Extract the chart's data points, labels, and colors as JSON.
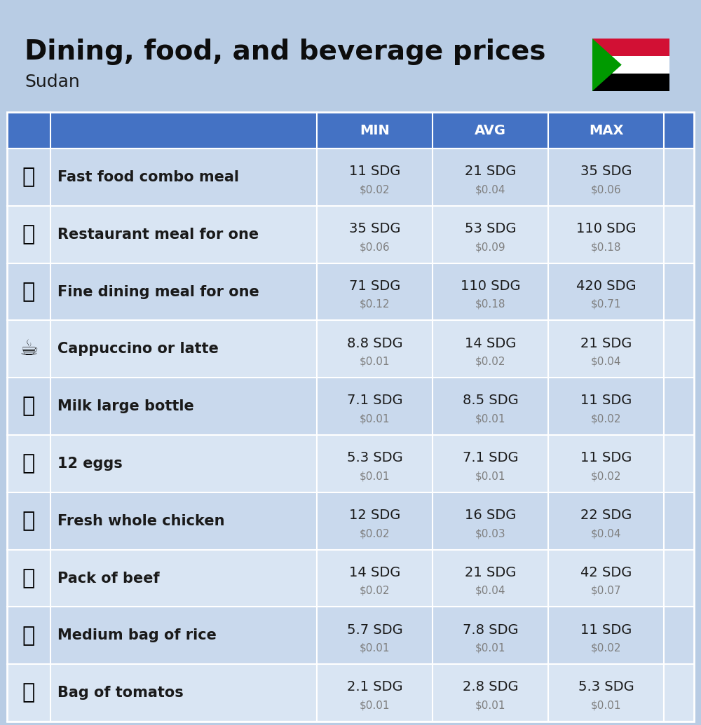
{
  "title": "Dining, food, and beverage prices",
  "subtitle": "Sudan",
  "bg_color": "#b8cce4",
  "header_bg": "#4472c4",
  "header_text_color": "#ffffff",
  "row_bg_odd": "#c9d9ed",
  "row_bg_even": "#d9e5f3",
  "col_headers": [
    "MIN",
    "AVG",
    "MAX"
  ],
  "items": [
    {
      "name": "Fast food combo meal",
      "emoji": "🍔",
      "min_sdg": "11 SDG",
      "min_usd": "$0.02",
      "avg_sdg": "21 SDG",
      "avg_usd": "$0.04",
      "max_sdg": "35 SDG",
      "max_usd": "$0.06"
    },
    {
      "name": "Restaurant meal for one",
      "emoji": "🍳",
      "min_sdg": "35 SDG",
      "min_usd": "$0.06",
      "avg_sdg": "53 SDG",
      "avg_usd": "$0.09",
      "max_sdg": "110 SDG",
      "max_usd": "$0.18"
    },
    {
      "name": "Fine dining meal for one",
      "emoji": "🍽️",
      "min_sdg": "71 SDG",
      "min_usd": "$0.12",
      "avg_sdg": "110 SDG",
      "avg_usd": "$0.18",
      "max_sdg": "420 SDG",
      "max_usd": "$0.71"
    },
    {
      "name": "Cappuccino or latte",
      "emoji": "☕",
      "min_sdg": "8.8 SDG",
      "min_usd": "$0.01",
      "avg_sdg": "14 SDG",
      "avg_usd": "$0.02",
      "max_sdg": "21 SDG",
      "max_usd": "$0.04"
    },
    {
      "name": "Milk large bottle",
      "emoji": "🥛",
      "min_sdg": "7.1 SDG",
      "min_usd": "$0.01",
      "avg_sdg": "8.5 SDG",
      "avg_usd": "$0.01",
      "max_sdg": "11 SDG",
      "max_usd": "$0.02"
    },
    {
      "name": "12 eggs",
      "emoji": "🥚",
      "min_sdg": "5.3 SDG",
      "min_usd": "$0.01",
      "avg_sdg": "7.1 SDG",
      "avg_usd": "$0.01",
      "max_sdg": "11 SDG",
      "max_usd": "$0.02"
    },
    {
      "name": "Fresh whole chicken",
      "emoji": "🍗",
      "min_sdg": "12 SDG",
      "min_usd": "$0.02",
      "avg_sdg": "16 SDG",
      "avg_usd": "$0.03",
      "max_sdg": "22 SDG",
      "max_usd": "$0.04"
    },
    {
      "name": "Pack of beef",
      "emoji": "🥩",
      "min_sdg": "14 SDG",
      "min_usd": "$0.02",
      "avg_sdg": "21 SDG",
      "avg_usd": "$0.04",
      "max_sdg": "42 SDG",
      "max_usd": "$0.07"
    },
    {
      "name": "Medium bag of rice",
      "emoji": "🍚",
      "min_sdg": "5.7 SDG",
      "min_usd": "$0.01",
      "avg_sdg": "7.8 SDG",
      "avg_usd": "$0.01",
      "max_sdg": "11 SDG",
      "max_usd": "$0.02"
    },
    {
      "name": "Bag of tomatos",
      "emoji": "🍅",
      "min_sdg": "2.1 SDG",
      "min_usd": "$0.01",
      "avg_sdg": "2.8 SDG",
      "avg_usd": "$0.01",
      "max_sdg": "5.3 SDG",
      "max_usd": "$0.01"
    }
  ],
  "name_fontsize": 15,
  "value_fontsize": 14,
  "usd_fontsize": 11,
  "header_fontsize": 14,
  "title_fontsize": 28,
  "subtitle_fontsize": 18,
  "usd_color": "#7f7f7f",
  "name_color": "#1a1a1a",
  "value_color": "#1a1a1a"
}
